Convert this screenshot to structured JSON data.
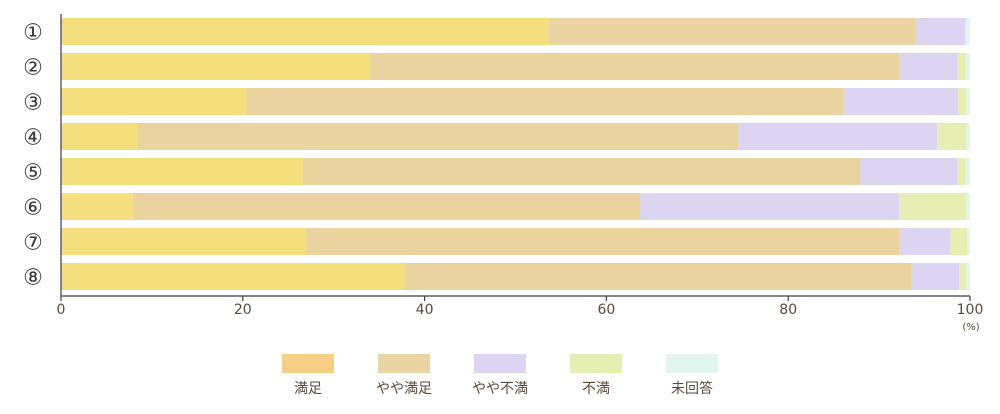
{
  "chart_data": {
    "type": "bar",
    "orientation": "horizontal",
    "stacked": true,
    "categories": [
      "①",
      "②",
      "③",
      "④",
      "⑤",
      "⑥",
      "⑦",
      "⑧"
    ],
    "series": [
      {
        "name": "満足",
        "color": "#f5de7c",
        "values": [
          53.6,
          34.0,
          20.4,
          8.4,
          26.6,
          7.9,
          27.0,
          37.8
        ]
      },
      {
        "name": "やや満足",
        "color": "#e9d49f",
        "values": [
          40.4,
          58.2,
          65.7,
          66.1,
          61.3,
          55.8,
          65.2,
          55.8
        ]
      },
      {
        "name": "やや不満",
        "color": "#ddd4f1",
        "values": [
          5.5,
          6.4,
          12.6,
          21.9,
          10.7,
          28.5,
          5.6,
          5.2
        ]
      },
      {
        "name": "不満",
        "color": "#e6efb1",
        "values": [
          0.0,
          0.9,
          0.9,
          3.2,
          0.9,
          7.4,
          1.9,
          0.8
        ]
      },
      {
        "name": "未回答",
        "color": "#e1f6ef",
        "values": [
          0.5,
          0.5,
          0.4,
          0.4,
          0.5,
          0.4,
          0.3,
          0.4
        ]
      }
    ],
    "legend_swatch_colors": [
      "#f6ce84",
      "#e8d5a2",
      "#ddd4f1",
      "#e4efb0",
      "#e0f6ef"
    ],
    "xlim": [
      0,
      100
    ],
    "xticks": [
      0,
      20,
      40,
      60,
      80,
      100
    ],
    "xunit": "(%)",
    "grid": false,
    "legend_position": "bottom",
    "axis_color": "#3c3c3c",
    "text_color": "#5a4a3a"
  }
}
